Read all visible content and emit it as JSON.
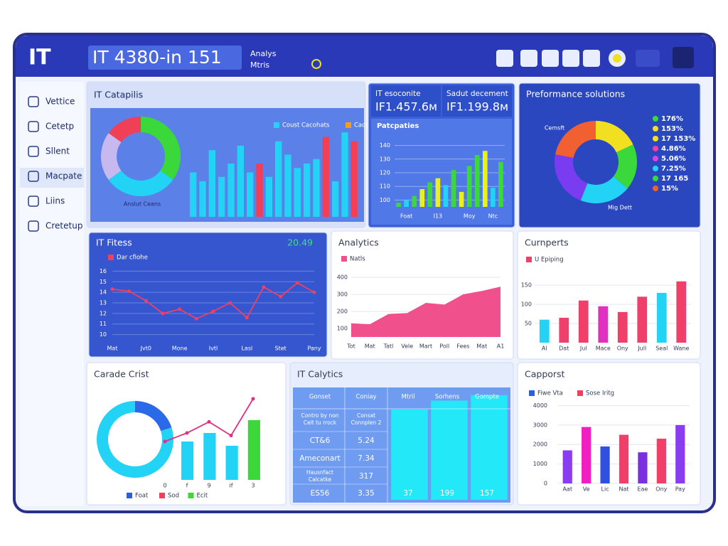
{
  "header": {
    "logo": "IT",
    "title": "IT 4380-in 151",
    "menu": [
      "Analys",
      "Mtris"
    ]
  },
  "sidebar": [
    "Vettice",
    "Cetetp",
    "Sllent",
    "Macpate",
    "Liins",
    "Cretetup"
  ],
  "panels": [
    {
      "title": "IT Catapilis",
      "legend": [
        {
          "name": "Coust Cacohats",
          "color": "#22d3f5"
        },
        {
          "name": "Cacoffers",
          "color": "#f0a020"
        }
      ],
      "charts": [
        {
          "type": "donut",
          "values": [
            35,
            30,
            20,
            15
          ],
          "colors": [
            "#3ad83a",
            "#22d3f5",
            "#c8b8f0",
            "#ef4058"
          ],
          "labels": [
            "Anslut Ceans"
          ]
        },
        {
          "type": "bar",
          "ylim": [
            0,
            100
          ],
          "values": [
            50,
            40,
            75,
            45,
            60,
            80,
            50,
            60,
            45,
            85,
            70,
            55,
            60,
            65,
            90,
            40,
            95,
            85
          ],
          "colors": [
            "#22d3f5",
            "#22d3f5",
            "#22d3f5",
            "#22d3f5",
            "#22d3f5",
            "#22d3f5",
            "#22d3f5",
            "#ef4058",
            "#22d3f5",
            "#22d3f5",
            "#22d3f5",
            "#22d3f5",
            "#22d3f5",
            "#22d3f5",
            "#ef4058",
            "#22d3f5",
            "#22d3f5",
            "#ef4058"
          ]
        }
      ]
    },
    {
      "kpis": [
        {
          "label": "IT esoconite",
          "value": "IF1.457.6м"
        },
        {
          "label": "Sadut decement",
          "value": "IF1.199.8м"
        }
      ],
      "subtitle": "Patcpaties",
      "charts": [
        {
          "type": "bar",
          "ylim": [
            95,
            145
          ],
          "yticks": [
            100,
            110,
            120,
            130,
            140
          ],
          "grid": true,
          "values": [
            98,
            100,
            103,
            108,
            113,
            116,
            111,
            122,
            106,
            125,
            133,
            136,
            109,
            128
          ],
          "colors": [
            "#3ad83a",
            "#22d3f5",
            "#3ad83a",
            "#e8f020",
            "#3ad83a",
            "#e8f020",
            "#22d3f5",
            "#3ad83a",
            "#e8f020",
            "#3ad83a",
            "#3ad83a",
            "#e8f020",
            "#22d3f5",
            "#3ad83a"
          ],
          "categories": [
            null,
            "Foat",
            null,
            null,
            null,
            "I13",
            null,
            null,
            null,
            "Moy",
            null,
            null,
            "Ntc",
            null
          ]
        }
      ]
    },
    {
      "title": "Preformance solutions",
      "legend": [
        {
          "name": "176%",
          "color": "#3ad83a"
        },
        {
          "name": "153%",
          "color": "#f0e020"
        },
        {
          "name": "17 153%",
          "color": "#f0e020"
        },
        {
          "name": "4.86%",
          "color": "#f040a0"
        },
        {
          "name": "5.06%",
          "color": "#e040e0"
        },
        {
          "name": "7.25%",
          "color": "#22d3f5"
        },
        {
          "name": "17 165",
          "color": "#3ad83a"
        },
        {
          "name": "15%",
          "color": "#f06030"
        }
      ],
      "charts": [
        {
          "type": "donut",
          "values": [
            18,
            18,
            20,
            22,
            22
          ],
          "colors": [
            "#f0e020",
            "#3ad83a",
            "#22d3f5",
            "#7a3cf0",
            "#f06030"
          ],
          "labels": [
            "Cemsft",
            "Mig Dett"
          ]
        }
      ]
    },
    {
      "title": "IT Fitess",
      "value": "20.49",
      "legend": [
        {
          "name": "Dar cfiohe",
          "color": "#f04060"
        }
      ],
      "charts": [
        {
          "type": "line",
          "color": "#f04060",
          "markers": true,
          "grid": true,
          "ylim": [
            9.5,
            16.5
          ],
          "yticks": [
            10,
            11,
            12,
            13,
            14,
            15,
            16
          ],
          "values": [
            14.3,
            14.1,
            13.2,
            12.0,
            12.4,
            11.5,
            12.2,
            13.0,
            11.6,
            14.5,
            13.6,
            14.9,
            14.0
          ],
          "categories": [
            "Mat",
            null,
            "Jvt0",
            null,
            "Mone",
            null,
            "Ivtl",
            null,
            "Lasl",
            null,
            "Stet",
            null,
            "Pany"
          ]
        }
      ]
    },
    {
      "title": "Analytics",
      "legend": [
        {
          "name": "Natls",
          "color": "#f0508c"
        }
      ],
      "charts": [
        {
          "type": "area",
          "color": "#f0508c",
          "grid": true,
          "ylim": [
            50,
            450
          ],
          "yticks": [
            100,
            200,
            300,
            400
          ],
          "values": [
            130,
            125,
            185,
            190,
            250,
            240,
            300,
            320,
            345
          ],
          "categories": [
            "Tot",
            "Mat",
            "Tatl",
            "Vele",
            "Mart",
            "Poll",
            "Fees",
            "Mat",
            "A1"
          ]
        }
      ]
    },
    {
      "title": "Curnperts",
      "legend": [
        {
          "name": "U Epiping",
          "color": "#f0406a"
        }
      ],
      "charts": [
        {
          "type": "bar",
          "grid": true,
          "ylim": [
            0,
            180
          ],
          "yticks": [
            50,
            100,
            150
          ],
          "values": [
            60,
            65,
            110,
            95,
            80,
            120,
            130,
            160
          ],
          "colors": [
            "#22d3f5",
            "#f0406a",
            "#f0406a",
            "#e030c0",
            "#f0406a",
            "#f0406a",
            "#22d3f5",
            "#f0406a"
          ],
          "categories": [
            "Al",
            "Dat",
            "Jul",
            "Mace",
            "Ony",
            "Jull",
            "Seal",
            "Wane"
          ]
        }
      ]
    },
    {
      "title": "Carade Crist",
      "legend": [
        {
          "name": "Foat",
          "color": "#2a5fe0"
        },
        {
          "name": "Sod",
          "color": "#f04060"
        },
        {
          "name": "Ecit",
          "color": "#3ad83a"
        }
      ],
      "charts": [
        {
          "type": "donut",
          "values": [
            20,
            80
          ],
          "colors": [
            "#2a6ae8",
            "#22d3f5"
          ]
        },
        {
          "type": "bar",
          "ylim": [
            0,
            100
          ],
          "values": [
            45,
            55,
            40,
            70
          ],
          "colors": [
            "#22d3f5",
            "#22d3f5",
            "#22d3f5",
            "#3ad83a"
          ]
        },
        {
          "type": "line",
          "color": "#e03080",
          "markers": true,
          "ylim": [
            0,
            100
          ],
          "values": [
            45,
            55,
            68,
            52,
            95
          ],
          "categories": [
            "0",
            "f",
            "9",
            "if",
            "3"
          ]
        }
      ]
    },
    {
      "title": "IT Calytics",
      "charts": [
        {
          "type": "bar",
          "ylim": [
            0,
            100
          ],
          "values": [
            82,
            90,
            95
          ],
          "color": "#22e8f8"
        }
      ],
      "table": {
        "header": [
          "Gonset",
          "Coniay",
          "Mtril",
          "Sorhens",
          "Gompte"
        ],
        "rows": [
          [
            [
              "Contro by non",
              "Celt tu rrock"
            ],
            [
              "Consat",
              "Connplen 2"
            ]
          ],
          [
            "CT&6",
            "5.24"
          ],
          [
            "Ameconart",
            "7.34"
          ],
          [
            [
              "Hausnfact",
              "Calcatke"
            ],
            "317"
          ],
          [
            "ES56",
            "3.35",
            "37",
            "199",
            "157"
          ]
        ]
      }
    },
    {
      "title": "Capporst",
      "legend": [
        {
          "name": "Fiwe Vta",
          "color": "#2a5fe0"
        },
        {
          "name": "Sose Iritg",
          "color": "#f04060"
        }
      ],
      "charts": [
        {
          "type": "bar",
          "grid": true,
          "ylim": [
            0,
            4200
          ],
          "yticks": [
            0,
            1000,
            2000,
            3000,
            4000
          ],
          "values": [
            1700,
            2900,
            1900,
            2500,
            1600,
            2300,
            3000
          ],
          "colors": [
            "#8a3cf0",
            "#f020c0",
            "#3050e0",
            "#f0406a",
            "#7a30e0",
            "#f0406a",
            "#8a3cf0"
          ],
          "categories": [
            "Aat",
            "Ve",
            "Lic",
            "Nat",
            "Eae",
            "Ony",
            "Pay"
          ]
        }
      ]
    }
  ]
}
